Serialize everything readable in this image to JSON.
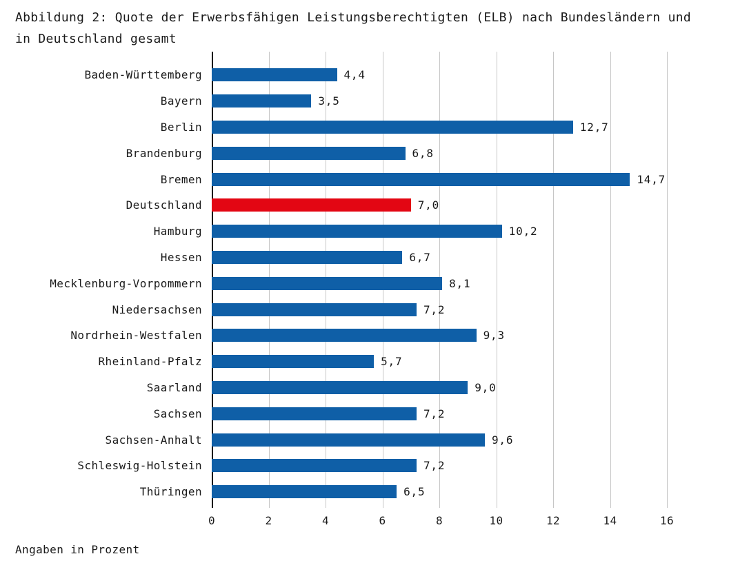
{
  "title": {
    "line1": "Abbildung 2: Quote der Erwerbsfähigen Leistungsberechtigten (ELB) nach Bundesländern und",
    "line2": "in Deutschland gesamt",
    "full": "Abbildung 2: Quote der Erwerbsfähigen Leistungsberechtigten (ELB) nach Bundesländern und in Deutschland gesamt"
  },
  "footnote": "Angaben in Prozent",
  "chart_data": {
    "type": "bar",
    "orientation": "horizontal",
    "title": "Abbildung 2: Quote der Erwerbsfähigen Leistungsberechtigten (ELB) nach Bundesländern und in Deutschland gesamt",
    "categories": [
      "Baden-Württemberg",
      "Bayern",
      "Berlin",
      "Brandenburg",
      "Bremen",
      "Deutschland",
      "Hamburg",
      "Hessen",
      "Mecklenburg-Vorpommern",
      "Niedersachsen",
      "Nordrhein-Westfalen",
      "Rheinland-Pfalz",
      "Saarland",
      "Sachsen",
      "Sachsen-Anhalt",
      "Schleswig-Holstein",
      "Thüringen"
    ],
    "values": [
      4.4,
      3.5,
      12.7,
      6.8,
      14.7,
      7.0,
      10.2,
      6.7,
      8.1,
      7.2,
      9.3,
      5.7,
      9.0,
      7.2,
      9.6,
      7.2,
      6.5
    ],
    "value_labels": [
      "4,4",
      "3,5",
      "12,7",
      "6,8",
      "14,7",
      "7,0",
      "10,2",
      "6,7",
      "8,1",
      "7,2",
      "9,3",
      "5,7",
      "9,0",
      "7,2",
      "9,6",
      "7,2",
      "6,5"
    ],
    "highlighted_category": "Deutschland",
    "x_ticks": [
      "0",
      "2",
      "4",
      "6",
      "8",
      "10",
      "12",
      "14",
      "16"
    ],
    "xlim": [
      0,
      16
    ],
    "xlabel": "",
    "ylabel": "",
    "grid": true,
    "legend": false,
    "colors": {
      "bar": "#0f5fa7",
      "highlight": "#e30613",
      "grid": "#c6c6c6",
      "axis": "#000000",
      "text": "#1a1a1a"
    },
    "unit_note": "Angaben in Prozent"
  }
}
